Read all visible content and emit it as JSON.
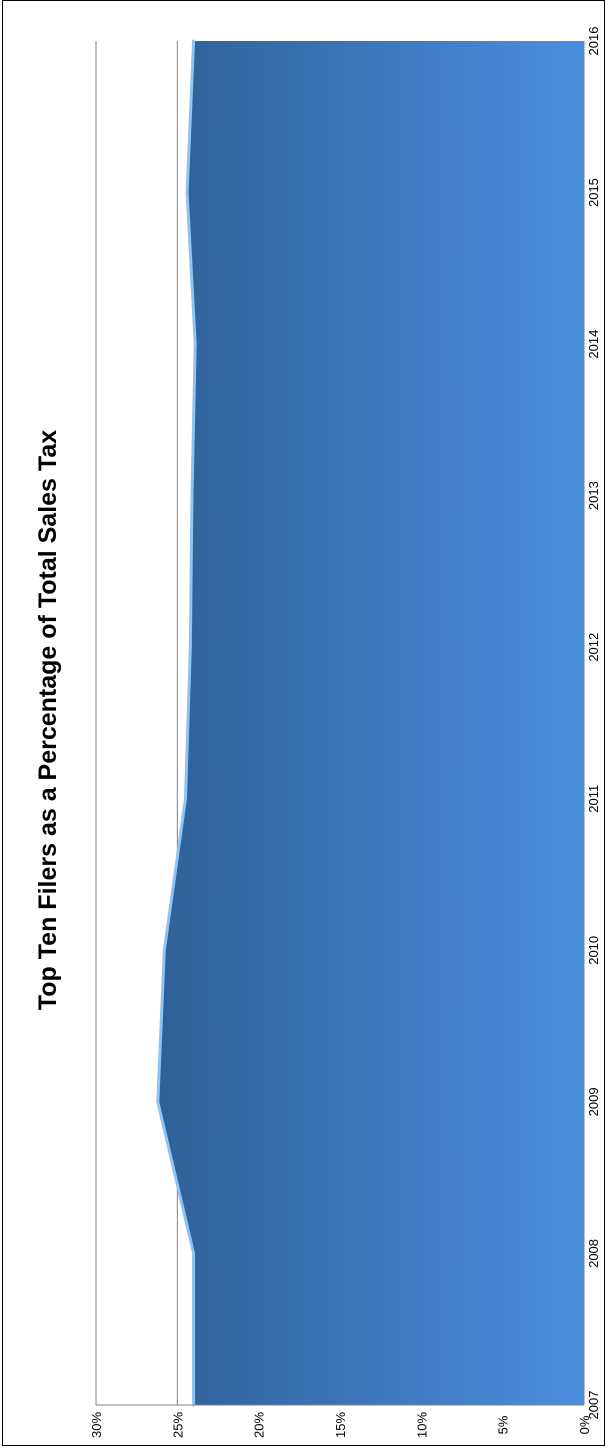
{
  "chart_data": {
    "type": "area",
    "orientation": "rotated-90-clockwise",
    "title": "Top Ten Filers as a Percentage of Total Sales Tax",
    "xlabel": "",
    "ylabel": "",
    "categories": [
      "2007",
      "2008",
      "2009",
      "2010",
      "2011",
      "2012",
      "2013",
      "2014",
      "2015",
      "2016"
    ],
    "series": [
      {
        "values": [
          0.24,
          0.24,
          0.262,
          0.258,
          0.245,
          0.242,
          0.241,
          0.239,
          0.244,
          0.24
        ]
      }
    ],
    "ylim": [
      0,
      0.3
    ],
    "yticks": [
      "0%",
      "5%",
      "10%",
      "15%",
      "20%",
      "25%",
      "30%"
    ],
    "grid": true,
    "legend": "none"
  },
  "colors": {
    "area_light": "#4a8fdf",
    "area_dark": "#2f6098",
    "area_edge": "#8fc4f2",
    "gridline": "#808080",
    "text": "#000000"
  }
}
